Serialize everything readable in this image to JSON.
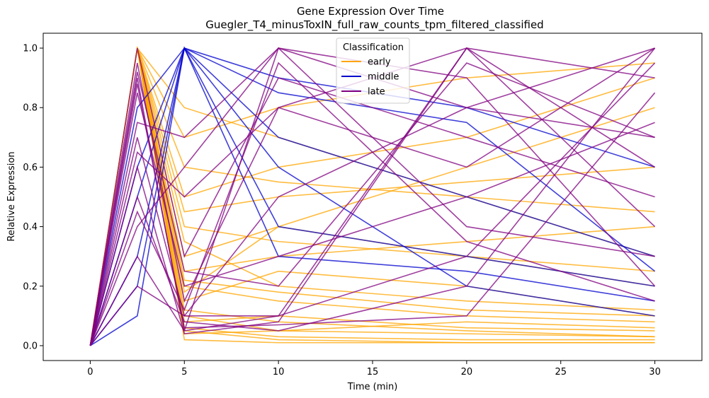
{
  "chart_data": {
    "type": "line",
    "title_line1": "Gene Expression Over Time",
    "title_line2": "Guegler_T4_minusToxIN_full_raw_counts_tpm_filtered_classified",
    "xlabel": "Time (min)",
    "ylabel": "Relative Expression",
    "x": [
      0,
      2.5,
      5,
      10,
      20,
      30
    ],
    "xlim": [
      -2.5,
      32.5
    ],
    "ylim": [
      -0.05,
      1.05
    ],
    "xticks": [
      0,
      5,
      10,
      15,
      20,
      25,
      30
    ],
    "yticks": [
      0.0,
      0.2,
      0.4,
      0.6,
      0.8,
      1.0
    ],
    "grid": false,
    "legend": {
      "title": "Classification",
      "placement": "top-center",
      "entries": [
        {
          "name": "early",
          "color": "#FFA500"
        },
        {
          "name": "middle",
          "color": "#0000CD"
        },
        {
          "name": "late",
          "color": "#800080"
        }
      ]
    },
    "series": [
      {
        "class": "early",
        "color": "#FFA500",
        "values": [
          0,
          1.0,
          0.05,
          0.02,
          0.01,
          0.01
        ]
      },
      {
        "class": "early",
        "color": "#FFA500",
        "values": [
          0,
          1.0,
          0.1,
          0.05,
          0.04,
          0.03
        ]
      },
      {
        "class": "early",
        "color": "#FFA500",
        "values": [
          0,
          1.0,
          0.2,
          0.15,
          0.1,
          0.08
        ]
      },
      {
        "class": "early",
        "color": "#FFA500",
        "values": [
          0,
          1.0,
          0.3,
          0.4,
          0.3,
          0.2
        ]
      },
      {
        "class": "early",
        "color": "#FFA500",
        "values": [
          0,
          1.0,
          0.5,
          0.6,
          0.7,
          0.9
        ]
      },
      {
        "class": "early",
        "color": "#FFA500",
        "values": [
          0,
          1.0,
          0.7,
          0.8,
          0.9,
          0.95
        ]
      },
      {
        "class": "early",
        "color": "#FFA500",
        "values": [
          0,
          1.0,
          0.02,
          0.01,
          0.01,
          0.01
        ]
      },
      {
        "class": "early",
        "color": "#FFA500",
        "values": [
          0,
          1.0,
          0.15,
          0.25,
          0.2,
          0.1
        ]
      },
      {
        "class": "early",
        "color": "#FFA500",
        "values": [
          0,
          1.0,
          0.4,
          0.35,
          0.3,
          0.25
        ]
      },
      {
        "class": "early",
        "color": "#FFA500",
        "values": [
          0,
          1.0,
          0.08,
          0.1,
          0.06,
          0.05
        ]
      },
      {
        "class": "early",
        "color": "#FFA500",
        "values": [
          0,
          1.0,
          0.6,
          0.55,
          0.5,
          0.45
        ]
      },
      {
        "class": "early",
        "color": "#FFA500",
        "values": [
          0,
          1.0,
          0.25,
          0.3,
          0.35,
          0.4
        ]
      },
      {
        "class": "early",
        "color": "#FFA500",
        "values": [
          0,
          1.0,
          0.12,
          0.08,
          0.05,
          0.03
        ]
      },
      {
        "class": "early",
        "color": "#FFA500",
        "values": [
          0,
          1.0,
          0.35,
          0.2,
          0.15,
          0.12
        ]
      },
      {
        "class": "early",
        "color": "#FFA500",
        "values": [
          0,
          1.0,
          0.18,
          0.4,
          0.6,
          0.8
        ]
      },
      {
        "class": "early",
        "color": "#FFA500",
        "values": [
          0,
          1.0,
          0.06,
          0.03,
          0.02,
          0.02
        ]
      },
      {
        "class": "early",
        "color": "#FFA500",
        "values": [
          0,
          1.0,
          0.45,
          0.5,
          0.55,
          0.6
        ]
      },
      {
        "class": "early",
        "color": "#FFA500",
        "values": [
          0,
          1.0,
          0.22,
          0.18,
          0.12,
          0.1
        ]
      },
      {
        "class": "early",
        "color": "#FFA500",
        "values": [
          0,
          1.0,
          0.04,
          0.05,
          0.08,
          0.06
        ]
      },
      {
        "class": "early",
        "color": "#FFA500",
        "values": [
          0,
          1.0,
          0.8,
          0.7,
          0.5,
          0.3
        ]
      },
      {
        "class": "middle",
        "color": "#0000CD",
        "values": [
          0,
          0.3,
          1.0,
          0.6,
          0.2,
          0.1
        ]
      },
      {
        "class": "middle",
        "color": "#0000CD",
        "values": [
          0,
          0.5,
          1.0,
          0.9,
          0.8,
          0.6
        ]
      },
      {
        "class": "middle",
        "color": "#0000CD",
        "values": [
          0,
          0.2,
          1.0,
          0.4,
          0.3,
          0.2
        ]
      },
      {
        "class": "middle",
        "color": "#0000CD",
        "values": [
          0,
          0.8,
          1.0,
          0.7,
          0.5,
          0.3
        ]
      },
      {
        "class": "middle",
        "color": "#0000CD",
        "values": [
          0,
          0.1,
          1.0,
          0.3,
          0.25,
          0.15
        ]
      },
      {
        "class": "middle",
        "color": "#0000CD",
        "values": [
          0,
          0.6,
          1.0,
          0.85,
          0.75,
          0.25
        ]
      },
      {
        "class": "late",
        "color": "#800080",
        "values": [
          0,
          0.9,
          0.05,
          1.0,
          0.8,
          0.7
        ]
      },
      {
        "class": "late",
        "color": "#800080",
        "values": [
          0,
          0.7,
          0.1,
          0.1,
          1.0,
          0.9
        ]
      },
      {
        "class": "late",
        "color": "#800080",
        "values": [
          0,
          0.5,
          0.08,
          0.05,
          0.2,
          1.0
        ]
      },
      {
        "class": "late",
        "color": "#800080",
        "values": [
          0,
          0.95,
          0.15,
          0.8,
          0.6,
          1.0
        ]
      },
      {
        "class": "late",
        "color": "#800080",
        "values": [
          0,
          0.4,
          0.6,
          1.0,
          0.9,
          0.2
        ]
      },
      {
        "class": "late",
        "color": "#800080",
        "values": [
          0,
          0.85,
          0.2,
          0.3,
          0.5,
          0.75
        ]
      },
      {
        "class": "late",
        "color": "#800080",
        "values": [
          0,
          0.6,
          0.04,
          0.08,
          1.0,
          0.4
        ]
      },
      {
        "class": "late",
        "color": "#800080",
        "values": [
          0,
          1.0,
          0.3,
          0.9,
          0.7,
          0.5
        ]
      },
      {
        "class": "late",
        "color": "#800080",
        "values": [
          0,
          0.3,
          0.05,
          0.1,
          0.3,
          0.95
        ]
      },
      {
        "class": "late",
        "color": "#800080",
        "values": [
          0,
          0.75,
          0.7,
          1.0,
          0.4,
          0.3
        ]
      },
      {
        "class": "late",
        "color": "#800080",
        "values": [
          0,
          0.2,
          0.1,
          0.5,
          0.8,
          1.0
        ]
      },
      {
        "class": "late",
        "color": "#800080",
        "values": [
          0,
          0.88,
          0.06,
          0.07,
          0.1,
          0.85
        ]
      },
      {
        "class": "late",
        "color": "#800080",
        "values": [
          0,
          0.65,
          0.5,
          0.8,
          1.0,
          0.6
        ]
      },
      {
        "class": "late",
        "color": "#800080",
        "values": [
          0,
          0.45,
          0.12,
          0.95,
          0.35,
          0.15
        ]
      },
      {
        "class": "late",
        "color": "#800080",
        "values": [
          0,
          0.92,
          0.25,
          0.2,
          0.95,
          0.7
        ]
      }
    ]
  }
}
